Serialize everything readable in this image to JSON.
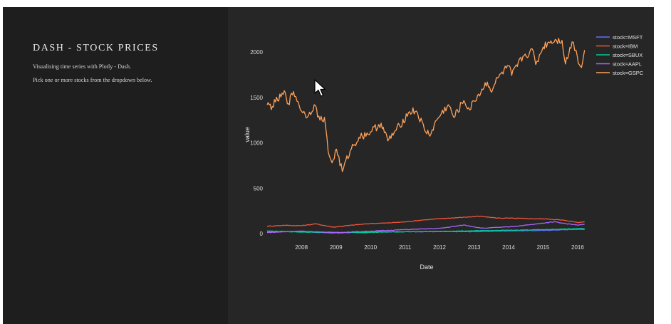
{
  "sidebar": {
    "title": "DASH - STOCK PRICES",
    "description_1": "Visualising time series with Plotly - Dash.",
    "description_2": "Pick one or more stocks from the dropdown below."
  },
  "chart_data": {
    "type": "line",
    "xlabel": "Date",
    "ylabel": "value",
    "x_ticks": [
      "2008",
      "2009",
      "2010",
      "2011",
      "2012",
      "2013",
      "2014",
      "2015",
      "2016"
    ],
    "y_ticks": [
      0,
      500,
      1000,
      1500,
      2000
    ],
    "xlim": [
      "2007-01-03",
      "2016-04-01"
    ],
    "ylim": [
      -30,
      2180
    ],
    "grid": false,
    "legend_position": "top-right",
    "series": [
      {
        "name": "stock=MSFT",
        "color": "#636efa",
        "x": [
          "2007-01-03",
          "2008-01-01",
          "2009-03-01",
          "2010-01-01",
          "2011-01-01",
          "2012-01-01",
          "2013-01-01",
          "2014-01-01",
          "2015-01-01",
          "2016-01-01",
          "2016-03-15"
        ],
        "values": [
          22,
          24,
          12,
          24,
          22,
          22,
          22,
          31,
          36,
          48,
          45
        ]
      },
      {
        "name": "stock=IBM",
        "color": "#ef553b",
        "x": [
          "2007-01-03",
          "2007-07-01",
          "2008-01-01",
          "2008-06-01",
          "2008-12-01",
          "2009-06-01",
          "2010-01-01",
          "2010-07-01",
          "2011-01-01",
          "2011-07-01",
          "2012-01-01",
          "2012-09-01",
          "2013-03-01",
          "2013-09-01",
          "2014-03-01",
          "2014-09-01",
          "2015-03-01",
          "2015-09-01",
          "2016-01-15",
          "2016-03-15"
        ],
        "values": [
          82,
          92,
          88,
          108,
          72,
          92,
          112,
          118,
          130,
          150,
          165,
          180,
          192,
          172,
          170,
          165,
          162,
          145,
          122,
          132
        ]
      },
      {
        "name": "stock=SBUX",
        "color": "#00cc96",
        "x": [
          "2007-01-03",
          "2008-01-01",
          "2008-12-01",
          "2010-01-01",
          "2011-01-01",
          "2012-01-01",
          "2013-01-01",
          "2014-01-01",
          "2015-01-01",
          "2016-01-01",
          "2016-03-15"
        ],
        "values": [
          30,
          18,
          9,
          15,
          21,
          25,
          32,
          38,
          45,
          55,
          57
        ]
      },
      {
        "name": "stock=AAPL",
        "color": "#ab63fa",
        "x": [
          "2007-01-03",
          "2007-12-01",
          "2009-01-01",
          "2010-01-01",
          "2011-01-01",
          "2012-01-01",
          "2012-09-15",
          "2013-04-01",
          "2014-01-01",
          "2014-09-01",
          "2015-05-01",
          "2015-09-01",
          "2016-01-15",
          "2016-03-15"
        ],
        "values": [
          12,
          28,
          12,
          28,
          45,
          58,
          95,
          60,
          75,
          100,
          132,
          110,
          95,
          105
        ]
      },
      {
        "name": "stock=GSPC",
        "color": "#ffa15a",
        "x": [
          "2007-01-03",
          "2007-02-27",
          "2007-04-01",
          "2007-07-15",
          "2007-08-15",
          "2007-10-09",
          "2008-01-15",
          "2008-03-15",
          "2008-05-15",
          "2008-07-15",
          "2008-09-01",
          "2008-10-10",
          "2008-11-20",
          "2009-01-06",
          "2009-03-09",
          "2009-06-01",
          "2009-09-01",
          "2010-01-01",
          "2010-04-23",
          "2010-07-02",
          "2010-10-01",
          "2011-02-18",
          "2011-05-01",
          "2011-08-08",
          "2011-10-03",
          "2011-12-01",
          "2012-04-02",
          "2012-06-01",
          "2012-09-14",
          "2012-11-15",
          "2013-01-01",
          "2013-05-21",
          "2013-06-24",
          "2013-09-18",
          "2013-12-31",
          "2014-02-03",
          "2014-06-01",
          "2014-09-18",
          "2014-10-15",
          "2015-01-01",
          "2015-03-01",
          "2015-05-21",
          "2015-07-20",
          "2015-08-25",
          "2015-11-03",
          "2015-12-15",
          "2016-01-20",
          "2016-02-11",
          "2016-03-15"
        ],
        "values": [
          1418,
          1400,
          1450,
          1550,
          1430,
          1565,
          1330,
          1300,
          1420,
          1250,
          1280,
          900,
          780,
          930,
          683,
          920,
          1060,
          1120,
          1217,
          1022,
          1140,
          1343,
          1350,
          1119,
          1099,
          1250,
          1419,
          1278,
          1465,
          1360,
          1460,
          1669,
          1573,
          1725,
          1848,
          1741,
          1950,
          2011,
          1862,
          2055,
          2110,
          2130,
          2128,
          1867,
          2110,
          2020,
          1860,
          1829,
          2020
        ]
      }
    ]
  }
}
